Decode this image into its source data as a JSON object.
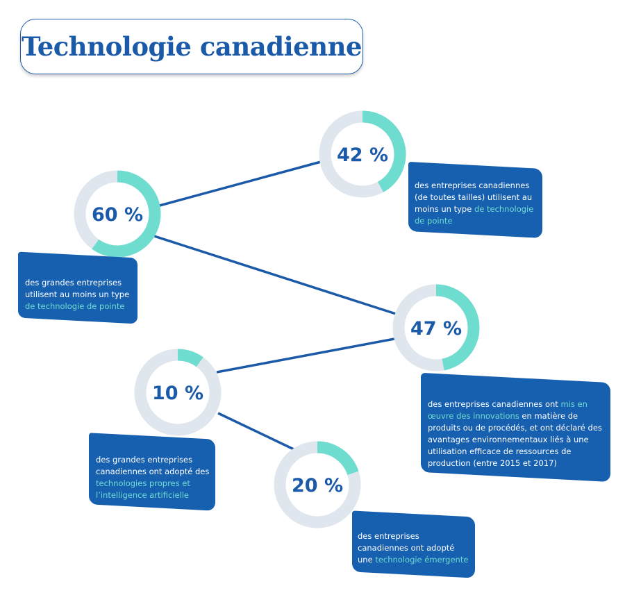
{
  "title": "Technologie canadienne",
  "colors": {
    "primary": "#1b5aa8",
    "callout_bg": "#1760b0",
    "highlight": "#6fdcd0",
    "ring_track": "#dfe6ed",
    "ring_fill": "#6fdcd0",
    "connector": "#1b5aa8"
  },
  "chart_data": {
    "type": "donut",
    "title": "Technologie canadienne",
    "items": [
      {
        "id": "60",
        "value": 60,
        "label": "60 %",
        "text_before": "des grandes entreprises utilisent au moins un type ",
        "highlight": "de technologie de pointe",
        "text_after": ""
      },
      {
        "id": "42",
        "value": 42,
        "label": "42 %",
        "text_before": "des entreprises canadiennes (de toutes tailles) utilisent au moins un type ",
        "highlight": "de technologie de pointe",
        "text_after": ""
      },
      {
        "id": "47",
        "value": 47,
        "label": "47 %",
        "text_before": "des entreprises canadiennes ont ",
        "highlight": "mis en œuvre des innovations",
        "text_after": " en matière de produits ou de procédés, et ont déclaré des avantages environnementaux liés à une utilisation efficace de ressources de production (entre 2015 et 2017)"
      },
      {
        "id": "10",
        "value": 10,
        "label": "10 %",
        "text_before": "des grandes entreprises canadiennes ont adopté des ",
        "highlight": "technologies propres et l’intelligence artificielle",
        "text_after": ""
      },
      {
        "id": "20",
        "value": 20,
        "label": "20 %",
        "text_before": "des entreprises canadiennes ont adopté une ",
        "highlight": "technologie émergente",
        "text_after": ""
      }
    ]
  }
}
